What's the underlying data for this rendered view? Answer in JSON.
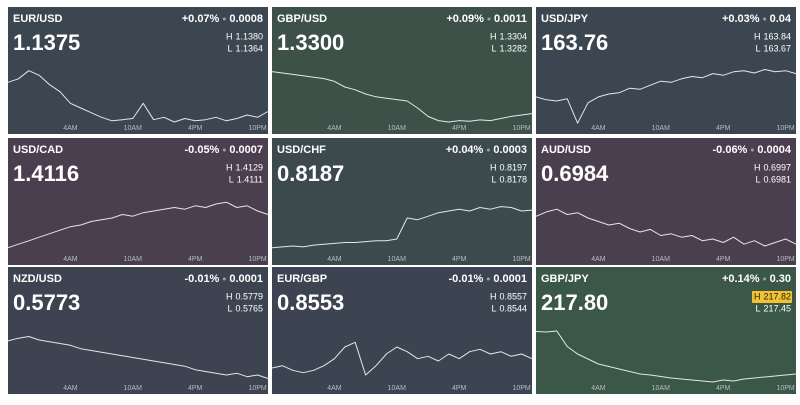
{
  "labels": {
    "high": "H",
    "low": "L"
  },
  "chart_data": [
    {
      "type": "line",
      "title": "EUR/USD",
      "price": "1.1375",
      "change_pct": "+0.07%",
      "change": "0.0008",
      "high": "1.1380",
      "low": "1.1364",
      "color": "#3b4650",
      "x": [
        -2,
        -1,
        0,
        1,
        2,
        3,
        4,
        5,
        6,
        7,
        8,
        9,
        10,
        11,
        12,
        13,
        14,
        15,
        16,
        17,
        18,
        19,
        20,
        21,
        22,
        23
      ],
      "values": [
        1.138,
        1.1383,
        1.139,
        1.1386,
        1.1378,
        1.1372,
        1.1362,
        1.1358,
        1.1354,
        1.135,
        1.1347,
        1.1348,
        1.1349,
        1.1362,
        1.1348,
        1.135,
        1.1346,
        1.1349,
        1.1347,
        1.1348,
        1.135,
        1.1347,
        1.1349,
        1.1352,
        1.135,
        1.1355
      ],
      "xlim": [
        -2,
        23
      ],
      "ylim": [
        1.134,
        1.14
      ],
      "xticks": [
        {
          "value": 4,
          "label": "4AM"
        },
        {
          "value": 10,
          "label": "10AM"
        },
        {
          "value": 16,
          "label": "4PM"
        },
        {
          "value": 22,
          "label": "10PM"
        }
      ]
    },
    {
      "type": "line",
      "title": "GBP/USD",
      "price": "1.3300",
      "change_pct": "+0.09%",
      "change": "0.0011",
      "high": "1.3304",
      "low": "1.3282",
      "color": "#3d5149",
      "x": [
        -2,
        -1,
        0,
        1,
        2,
        3,
        4,
        5,
        6,
        7,
        8,
        9,
        10,
        11,
        12,
        13,
        14,
        15,
        16,
        17,
        18,
        19,
        20,
        21,
        22,
        23
      ],
      "values": [
        1.3322,
        1.332,
        1.3318,
        1.3316,
        1.3314,
        1.3312,
        1.3308,
        1.33,
        1.3296,
        1.329,
        1.3286,
        1.3284,
        1.3282,
        1.328,
        1.327,
        1.3258,
        1.3252,
        1.325,
        1.3252,
        1.3251,
        1.3253,
        1.3252,
        1.3255,
        1.3258,
        1.326,
        1.3262
      ],
      "xlim": [
        -2,
        23
      ],
      "ylim": [
        1.324,
        1.334
      ],
      "xticks": [
        {
          "value": 4,
          "label": "4AM"
        },
        {
          "value": 10,
          "label": "10AM"
        },
        {
          "value": 16,
          "label": "4PM"
        },
        {
          "value": 22,
          "label": "10PM"
        }
      ]
    },
    {
      "type": "line",
      "title": "USD/JPY",
      "price": "163.76",
      "change_pct": "+0.03%",
      "change": "0.04",
      "high": "163.84",
      "low": "163.67",
      "color": "#3b4650",
      "x": [
        -2,
        -1,
        0,
        1,
        2,
        3,
        4,
        5,
        6,
        7,
        8,
        9,
        10,
        11,
        12,
        13,
        14,
        15,
        16,
        17,
        18,
        19,
        20,
        21,
        22,
        23
      ],
      "values": [
        163.55,
        163.5,
        163.48,
        163.52,
        163.1,
        163.45,
        163.55,
        163.6,
        163.62,
        163.7,
        163.68,
        163.75,
        163.82,
        163.8,
        163.86,
        163.9,
        163.88,
        163.95,
        163.92,
        163.98,
        164.0,
        163.96,
        164.02,
        163.98,
        164.0,
        163.95
      ],
      "xlim": [
        -2,
        23
      ],
      "ylim": [
        163.0,
        164.2
      ],
      "xticks": [
        {
          "value": 4,
          "label": "4AM"
        },
        {
          "value": 10,
          "label": "10AM"
        },
        {
          "value": 16,
          "label": "4PM"
        },
        {
          "value": 22,
          "label": "10PM"
        }
      ]
    },
    {
      "type": "line",
      "title": "USD/CAD",
      "price": "1.4116",
      "change_pct": "-0.05%",
      "change": "0.0007",
      "high": "1.4129",
      "low": "1.4111",
      "color": "#4a3f4e",
      "x": [
        -2,
        -1,
        0,
        1,
        2,
        3,
        4,
        5,
        6,
        7,
        8,
        9,
        10,
        11,
        12,
        13,
        14,
        15,
        16,
        17,
        18,
        19,
        20,
        21,
        22,
        23
      ],
      "values": [
        1.4074,
        1.4078,
        1.4082,
        1.4086,
        1.409,
        1.4094,
        1.4098,
        1.41,
        1.4104,
        1.4106,
        1.4108,
        1.4112,
        1.411,
        1.4114,
        1.4116,
        1.4118,
        1.412,
        1.4118,
        1.4122,
        1.412,
        1.4124,
        1.4126,
        1.412,
        1.4122,
        1.4116,
        1.4112
      ],
      "xlim": [
        -2,
        23
      ],
      "ylim": [
        1.406,
        1.414
      ],
      "xticks": [
        {
          "value": 4,
          "label": "4AM"
        },
        {
          "value": 10,
          "label": "10AM"
        },
        {
          "value": 16,
          "label": "4PM"
        },
        {
          "value": 22,
          "label": "10PM"
        }
      ]
    },
    {
      "type": "line",
      "title": "USD/CHF",
      "price": "0.8187",
      "change_pct": "+0.04%",
      "change": "0.0003",
      "high": "0.8197",
      "low": "0.8178",
      "color": "#3c4a4d",
      "x": [
        -2,
        -1,
        0,
        1,
        2,
        3,
        4,
        5,
        6,
        7,
        8,
        9,
        10,
        11,
        12,
        13,
        14,
        15,
        16,
        17,
        18,
        19,
        20,
        21,
        22,
        23
      ],
      "values": [
        0.8144,
        0.8145,
        0.8146,
        0.8145,
        0.8147,
        0.8148,
        0.8149,
        0.815,
        0.815,
        0.8151,
        0.8152,
        0.8152,
        0.8154,
        0.8178,
        0.8176,
        0.818,
        0.8184,
        0.8186,
        0.8188,
        0.8186,
        0.819,
        0.8188,
        0.8191,
        0.819,
        0.8186,
        0.8187
      ],
      "xlim": [
        -2,
        23
      ],
      "ylim": [
        0.813,
        0.821
      ],
      "xticks": [
        {
          "value": 4,
          "label": "4AM"
        },
        {
          "value": 10,
          "label": "10AM"
        },
        {
          "value": 16,
          "label": "4PM"
        },
        {
          "value": 22,
          "label": "10PM"
        }
      ]
    },
    {
      "type": "line",
      "title": "AUD/USD",
      "price": "0.6984",
      "change_pct": "-0.06%",
      "change": "0.0004",
      "high": "0.6997",
      "low": "0.6981",
      "color": "#4a3f4e",
      "x": [
        -2,
        -1,
        0,
        1,
        2,
        3,
        4,
        5,
        6,
        7,
        8,
        9,
        10,
        11,
        12,
        13,
        14,
        15,
        16,
        17,
        18,
        19,
        20,
        21,
        22,
        23
      ],
      "values": [
        0.699,
        0.6995,
        0.6998,
        0.6992,
        0.6994,
        0.6988,
        0.6984,
        0.698,
        0.6982,
        0.6976,
        0.6972,
        0.6975,
        0.6968,
        0.697,
        0.6966,
        0.6968,
        0.6962,
        0.6964,
        0.696,
        0.6966,
        0.6958,
        0.6962,
        0.6956,
        0.696,
        0.6964,
        0.6958
      ],
      "xlim": [
        -2,
        23
      ],
      "ylim": [
        0.694,
        0.702
      ],
      "xticks": [
        {
          "value": 4,
          "label": "4AM"
        },
        {
          "value": 10,
          "label": "10AM"
        },
        {
          "value": 16,
          "label": "4PM"
        },
        {
          "value": 22,
          "label": "10PM"
        }
      ]
    },
    {
      "type": "line",
      "title": "NZD/USD",
      "price": "0.5773",
      "change_pct": "-0.01%",
      "change": "0.0001",
      "high": "0.5779",
      "low": "0.5765",
      "color": "#3d4350",
      "x": [
        -2,
        -1,
        0,
        1,
        2,
        3,
        4,
        5,
        6,
        7,
        8,
        9,
        10,
        11,
        12,
        13,
        14,
        15,
        16,
        17,
        18,
        19,
        20,
        21,
        22,
        23
      ],
      "values": [
        0.5775,
        0.5778,
        0.578,
        0.5776,
        0.5774,
        0.5772,
        0.577,
        0.5766,
        0.5764,
        0.5762,
        0.576,
        0.5758,
        0.5756,
        0.5754,
        0.5752,
        0.575,
        0.5748,
        0.5746,
        0.5742,
        0.574,
        0.5738,
        0.5736,
        0.5738,
        0.5734,
        0.5736,
        0.5732
      ],
      "xlim": [
        -2,
        23
      ],
      "ylim": [
        0.572,
        0.58
      ],
      "xticks": [
        {
          "value": 4,
          "label": "4AM"
        },
        {
          "value": 10,
          "label": "10AM"
        },
        {
          "value": 16,
          "label": "4PM"
        },
        {
          "value": 22,
          "label": "10PM"
        }
      ]
    },
    {
      "type": "line",
      "title": "EUR/GBP",
      "price": "0.8553",
      "change_pct": "-0.01%",
      "change": "0.0001",
      "high": "0.8557",
      "low": "0.8544",
      "color": "#3b4450",
      "x": [
        -2,
        -1,
        0,
        1,
        2,
        3,
        4,
        5,
        6,
        7,
        8,
        9,
        10,
        11,
        12,
        13,
        14,
        15,
        16,
        17,
        18,
        19,
        20,
        21,
        22,
        23
      ],
      "values": [
        0.8538,
        0.854,
        0.8536,
        0.8534,
        0.8536,
        0.854,
        0.8546,
        0.8556,
        0.856,
        0.8532,
        0.854,
        0.855,
        0.8556,
        0.8552,
        0.8546,
        0.8548,
        0.8544,
        0.855,
        0.8546,
        0.8552,
        0.8554,
        0.855,
        0.8552,
        0.8548,
        0.855,
        0.8546
      ],
      "xlim": [
        -2,
        23
      ],
      "ylim": [
        0.852,
        0.858
      ],
      "xticks": [
        {
          "value": 4,
          "label": "4AM"
        },
        {
          "value": 10,
          "label": "10AM"
        },
        {
          "value": 16,
          "label": "4PM"
        },
        {
          "value": 22,
          "label": "10PM"
        }
      ]
    },
    {
      "type": "line",
      "title": "GBP/JPY",
      "price": "217.80",
      "change_pct": "+0.14%",
      "change": "0.30",
      "high": "217.82",
      "low": "217.45",
      "color": "#3a5748",
      "high_highlight": "#f2c230",
      "x": [
        -2,
        -1,
        0,
        1,
        2,
        3,
        4,
        5,
        6,
        7,
        8,
        9,
        10,
        11,
        12,
        13,
        14,
        15,
        16,
        17,
        18,
        19,
        20,
        21,
        22,
        23
      ],
      "values": [
        217.75,
        217.74,
        217.76,
        217.45,
        217.3,
        217.2,
        217.1,
        217.05,
        217.0,
        216.95,
        216.9,
        216.88,
        216.85,
        216.82,
        216.8,
        216.78,
        216.76,
        216.74,
        216.78,
        216.76,
        216.8,
        216.82,
        216.84,
        216.86,
        216.88,
        216.9
      ],
      "xlim": [
        -2,
        23
      ],
      "ylim": [
        216.6,
        218.0
      ],
      "xticks": [
        {
          "value": 4,
          "label": "4AM"
        },
        {
          "value": 10,
          "label": "10AM"
        },
        {
          "value": 16,
          "label": "4PM"
        },
        {
          "value": 22,
          "label": "10PM"
        }
      ]
    }
  ]
}
